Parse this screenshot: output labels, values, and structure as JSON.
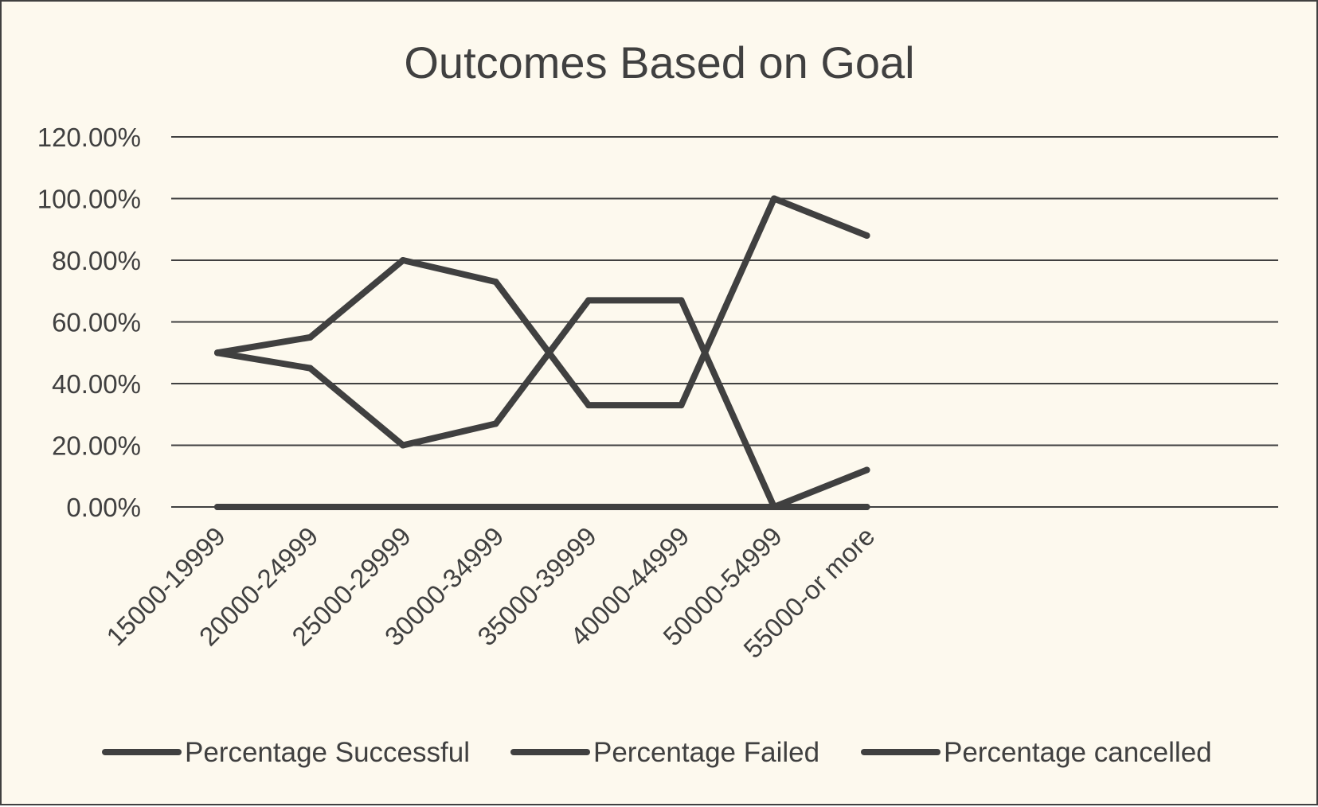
{
  "chart_data": {
    "type": "line",
    "title": "Outcomes Based on Goal",
    "xlabel": "",
    "ylabel": "",
    "categories": [
      "15000-19999",
      "20000-24999",
      "25000-29999",
      "30000-34999",
      "35000-39999",
      "40000-44999",
      "50000-54999",
      "55000-or more"
    ],
    "series": [
      {
        "name": "Percentage Successful",
        "values": [
          0.5,
          0.45,
          0.2,
          0.27,
          0.67,
          0.67,
          0.0,
          0.12
        ]
      },
      {
        "name": "Percentage Failed",
        "values": [
          0.5,
          0.55,
          0.8,
          0.73,
          0.33,
          0.33,
          1.0,
          0.88
        ]
      },
      {
        "name": "Percentage cancelled",
        "values": [
          0,
          0,
          0,
          0,
          0,
          0,
          0,
          0
        ]
      }
    ],
    "ylim": [
      0,
      1.2
    ],
    "yticks": [
      0,
      0.2,
      0.4,
      0.6,
      0.8,
      1.0,
      1.2
    ],
    "ytick_labels": [
      "0.00%",
      "20.00%",
      "40.00%",
      "60.00%",
      "80.00%",
      "100.00%",
      "120.00%"
    ],
    "grid": true,
    "legend_position": "bottom",
    "line_color": "#404040",
    "grid_color": "#404040",
    "background_color": "#fdf9ee"
  }
}
